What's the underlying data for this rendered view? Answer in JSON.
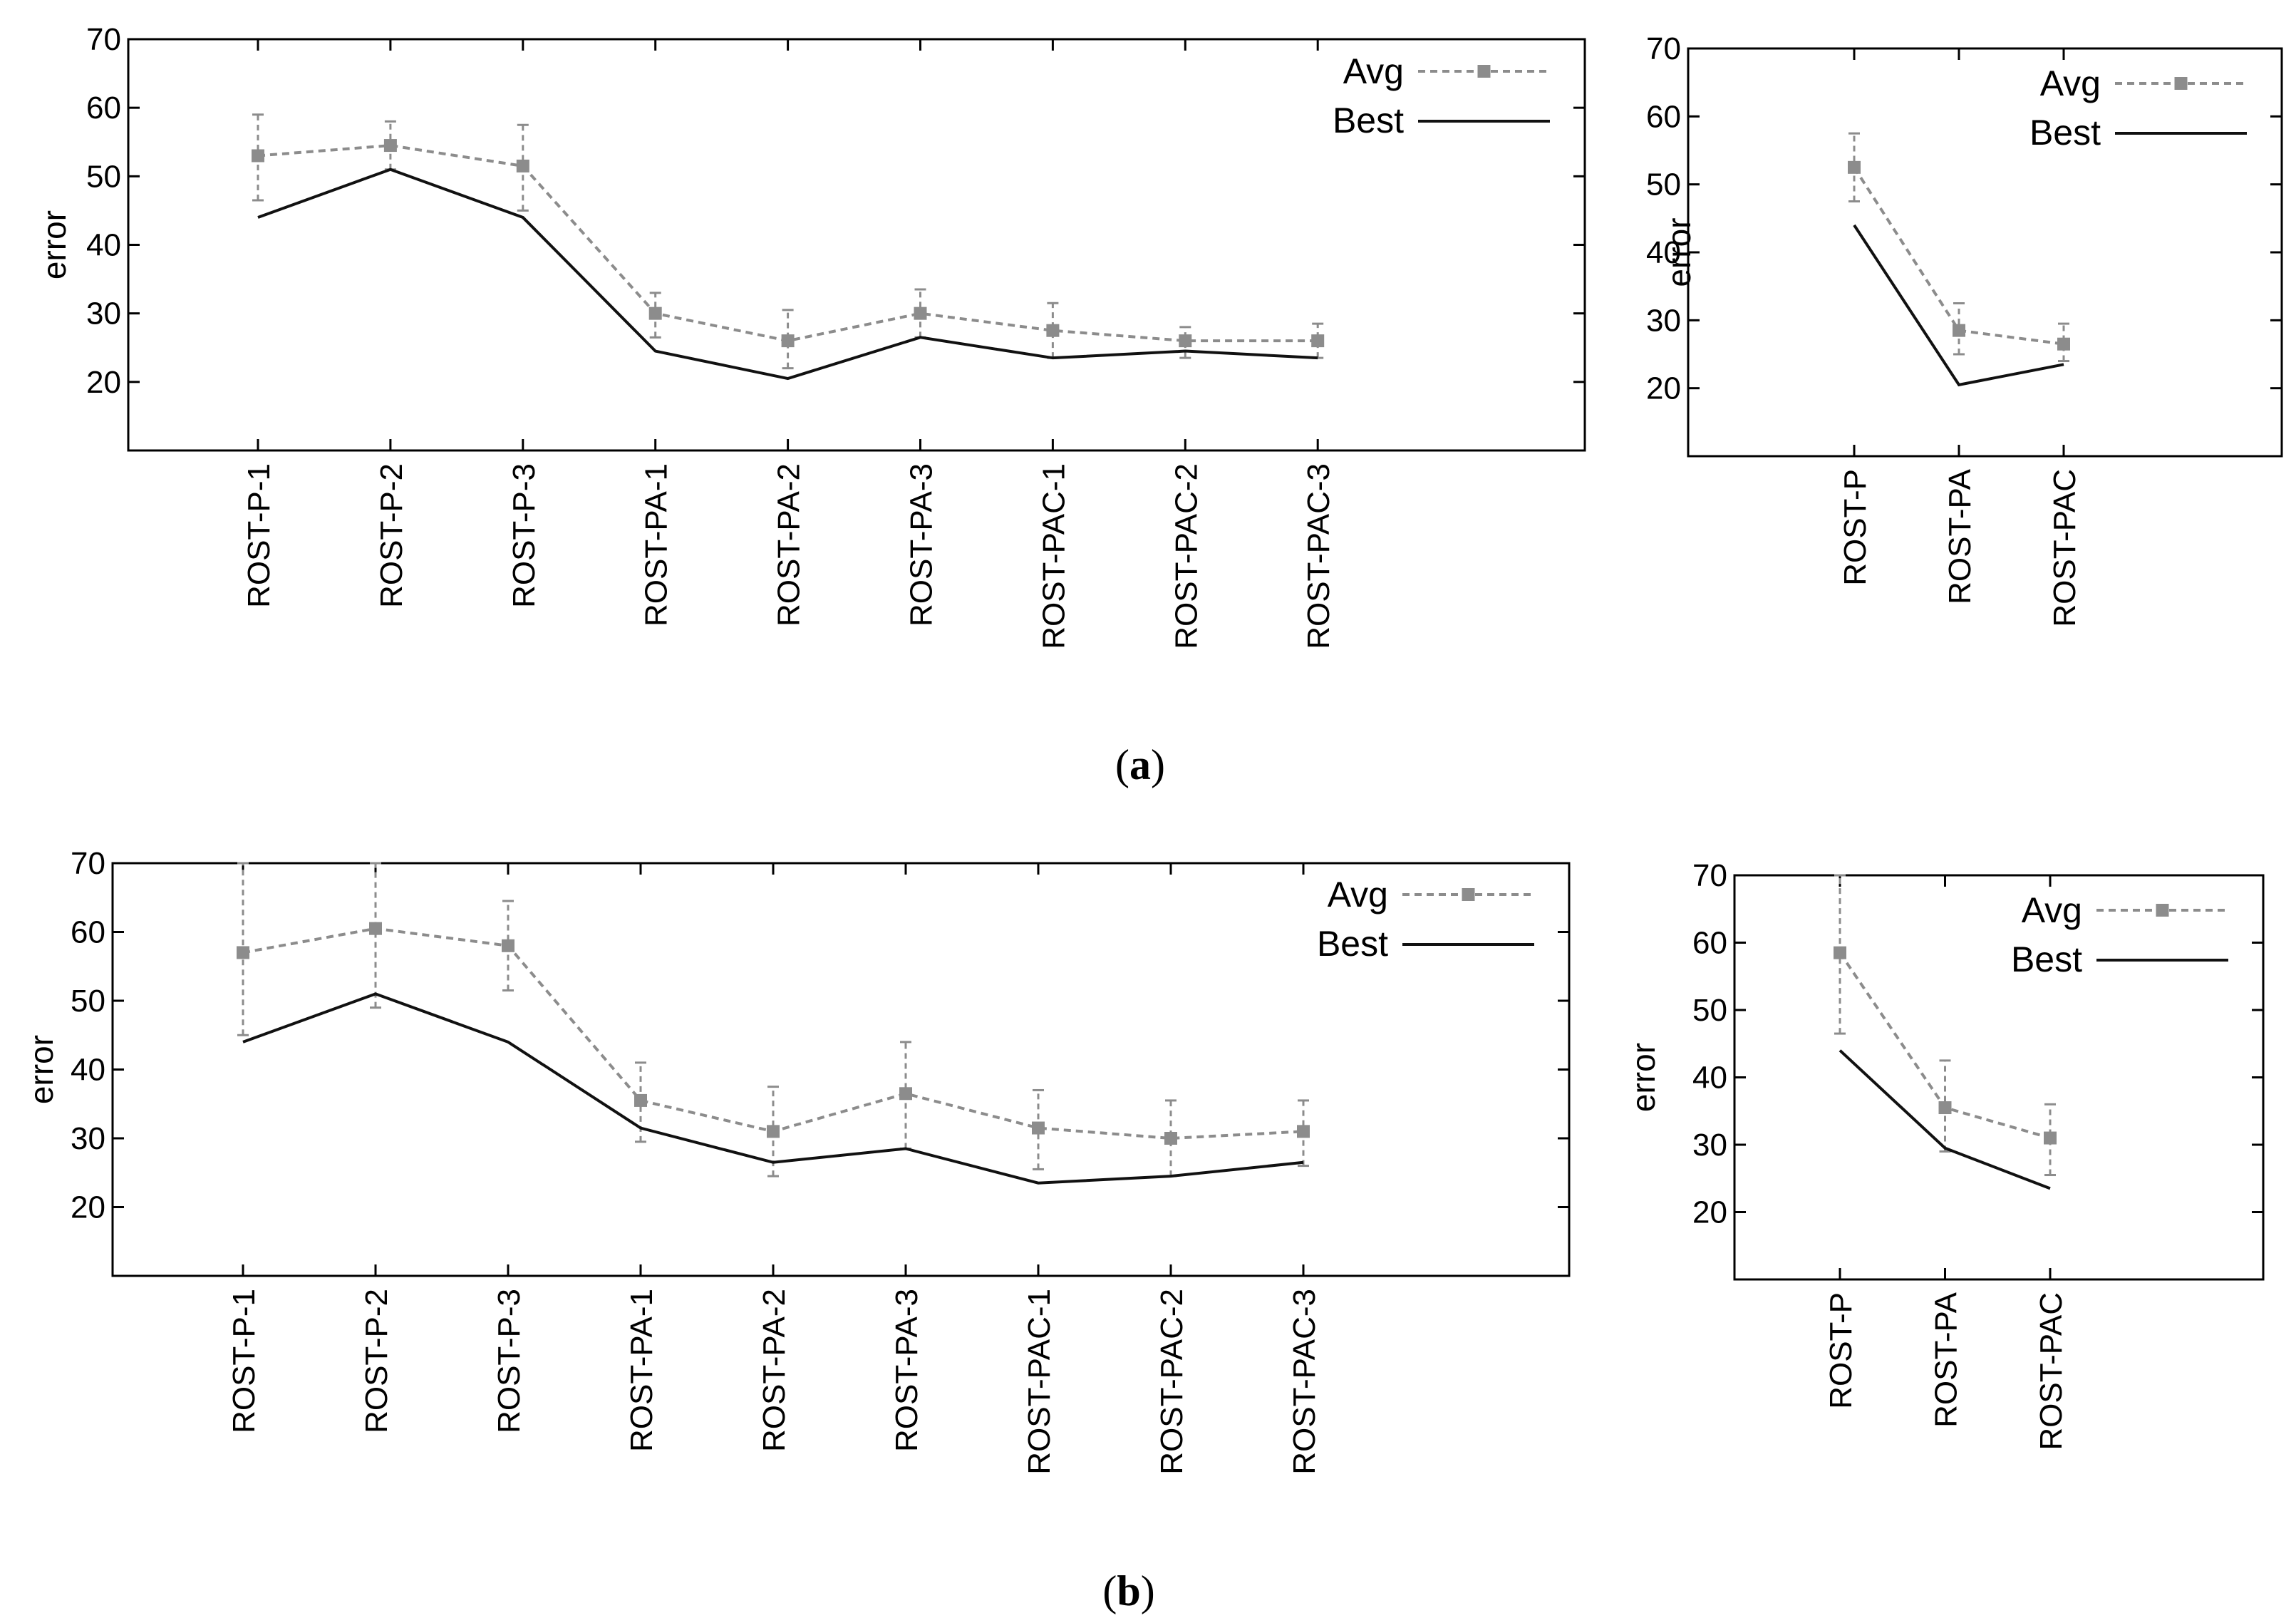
{
  "figure": {
    "captions": [
      {
        "open": "(",
        "letter": "a",
        "close": ")"
      },
      {
        "open": "(",
        "letter": "b",
        "close": ")"
      }
    ]
  },
  "chart_data": [
    {
      "id": "a-left",
      "type": "line",
      "ylabel": "error",
      "ylim": [
        10,
        70
      ],
      "yticks": [
        20,
        30,
        40,
        50,
        60,
        70
      ],
      "categories": [
        "ROST-P-1",
        "ROST-P-2",
        "ROST-P-3",
        "ROST-PA-1",
        "ROST-PA-2",
        "ROST-PA-3",
        "ROST-PAC-1",
        "ROST-PAC-2",
        "ROST-PAC-3"
      ],
      "legend": {
        "position": "top-right",
        "entries": [
          "Avg",
          "Best"
        ]
      },
      "series": [
        {
          "name": "Avg",
          "style": "dashed-gray-square",
          "values": [
            53,
            54.5,
            51.5,
            30,
            26,
            30,
            27.5,
            26,
            26
          ],
          "err_low": [
            46.5,
            51,
            45,
            26.5,
            22,
            26.5,
            23.5,
            23.5,
            23.5
          ],
          "err_high": [
            59,
            58,
            57.5,
            33,
            30.5,
            33.5,
            31.5,
            28,
            28.5
          ]
        },
        {
          "name": "Best",
          "style": "solid-black",
          "values": [
            44,
            51,
            44,
            24.5,
            20.5,
            26.5,
            23.5,
            24.5,
            23.5
          ]
        }
      ]
    },
    {
      "id": "a-right",
      "type": "line",
      "ylabel": "error",
      "ylim": [
        10,
        70
      ],
      "yticks": [
        20,
        30,
        40,
        50,
        60,
        70
      ],
      "categories": [
        "ROST-P",
        "ROST-PA",
        "ROST-PAC"
      ],
      "legend": {
        "position": "top-right",
        "entries": [
          "Avg",
          "Best"
        ]
      },
      "series": [
        {
          "name": "Avg",
          "style": "dashed-gray-square",
          "values": [
            52.5,
            28.5,
            26.5
          ],
          "err_low": [
            47.5,
            25,
            24
          ],
          "err_high": [
            57.5,
            32.5,
            29.5
          ]
        },
        {
          "name": "Best",
          "style": "solid-black",
          "values": [
            44,
            20.5,
            23.5
          ]
        }
      ]
    },
    {
      "id": "b-left",
      "type": "line",
      "ylabel": "error",
      "ylim": [
        10,
        70
      ],
      "yticks": [
        20,
        30,
        40,
        50,
        60,
        70
      ],
      "categories": [
        "ROST-P-1",
        "ROST-P-2",
        "ROST-P-3",
        "ROST-PA-1",
        "ROST-PA-2",
        "ROST-PA-3",
        "ROST-PAC-1",
        "ROST-PAC-2",
        "ROST-PAC-3"
      ],
      "legend": {
        "position": "top-right",
        "entries": [
          "Avg",
          "Best"
        ]
      },
      "series": [
        {
          "name": "Avg",
          "style": "dashed-gray-square",
          "values": [
            57,
            60.5,
            58,
            35.5,
            31,
            36.5,
            31.5,
            30,
            31
          ],
          "err_low": [
            45,
            49,
            51.5,
            29.5,
            24.5,
            28.5,
            25.5,
            24.5,
            26
          ],
          "err_high": [
            70,
            70,
            64.5,
            41,
            37.5,
            44,
            37,
            35.5,
            35.5
          ]
        },
        {
          "name": "Best",
          "style": "solid-black",
          "values": [
            44,
            51,
            44,
            31.5,
            26.5,
            28.5,
            23.5,
            24.5,
            26.5
          ]
        }
      ]
    },
    {
      "id": "b-right",
      "type": "line",
      "ylabel": "error",
      "ylim": [
        10,
        70
      ],
      "yticks": [
        20,
        30,
        40,
        50,
        60,
        70
      ],
      "categories": [
        "ROST-P",
        "ROST-PA",
        "ROST-PAC"
      ],
      "legend": {
        "position": "top-right",
        "entries": [
          "Avg",
          "Best"
        ]
      },
      "series": [
        {
          "name": "Avg",
          "style": "dashed-gray-square",
          "values": [
            58.5,
            35.5,
            31
          ],
          "err_low": [
            46.5,
            29,
            25.5
          ],
          "err_high": [
            70,
            42.5,
            36
          ]
        },
        {
          "name": "Best",
          "style": "solid-black",
          "values": [
            44,
            29.5,
            23.5
          ]
        }
      ]
    }
  ]
}
